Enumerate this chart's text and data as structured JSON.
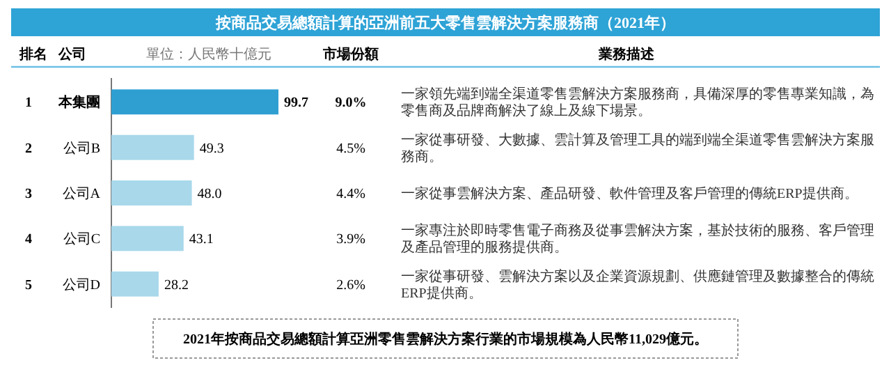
{
  "chart_data": {
    "type": "bar",
    "orientation": "horizontal",
    "title": "按商品交易總額計算的亞洲前五大零售雲解決方案服務商（2021年）",
    "xlabel": "單位：人民幣十億元",
    "ylabel": "公司",
    "categories": [
      "本集團",
      "公司B",
      "公司A",
      "公司C",
      "公司D"
    ],
    "values": [
      99.7,
      49.3,
      48.0,
      43.1,
      28.2
    ],
    "value_labels": [
      "99.7",
      "49.3",
      "48.0",
      "43.1",
      "28.2"
    ],
    "colors": [
      "#2f9fd2",
      "#a8d8ea",
      "#a8d8ea",
      "#a8d8ea",
      "#a8d8ea"
    ],
    "annotations": [
      "排名",
      "市場份額",
      "業務描述",
      "2021年按商品交易總額計算亞洲零售雲解決方案行業的市場規模為人民幣11,029億元。",
      "1",
      "9.0%",
      "一家領先端到端全渠道零售雲解決方案服務商，具備深厚的零售專業知識，為零售商及品牌商解決了線上及線下場景。",
      "2",
      "4.5%",
      "一家從事研發、大數據、雲計算及管理工具的端到端全渠道零售雲解決方案服務商。",
      "3",
      "4.4%",
      "一家從事雲解決方案、產品研發、軟件管理及客戶管理的傳統ERP提供商。",
      "4",
      "3.9%",
      "一家專注於即時零售電子商務及從事雲解決方案，基於技術的服務、客戶管理及產品管理的服務提供商。",
      "5",
      "2.6%",
      "一家從事研發、雲解決方案以及企業資源規劃、供應鏈管理及數據整合的傳統ERP提供商。"
    ]
  }
}
